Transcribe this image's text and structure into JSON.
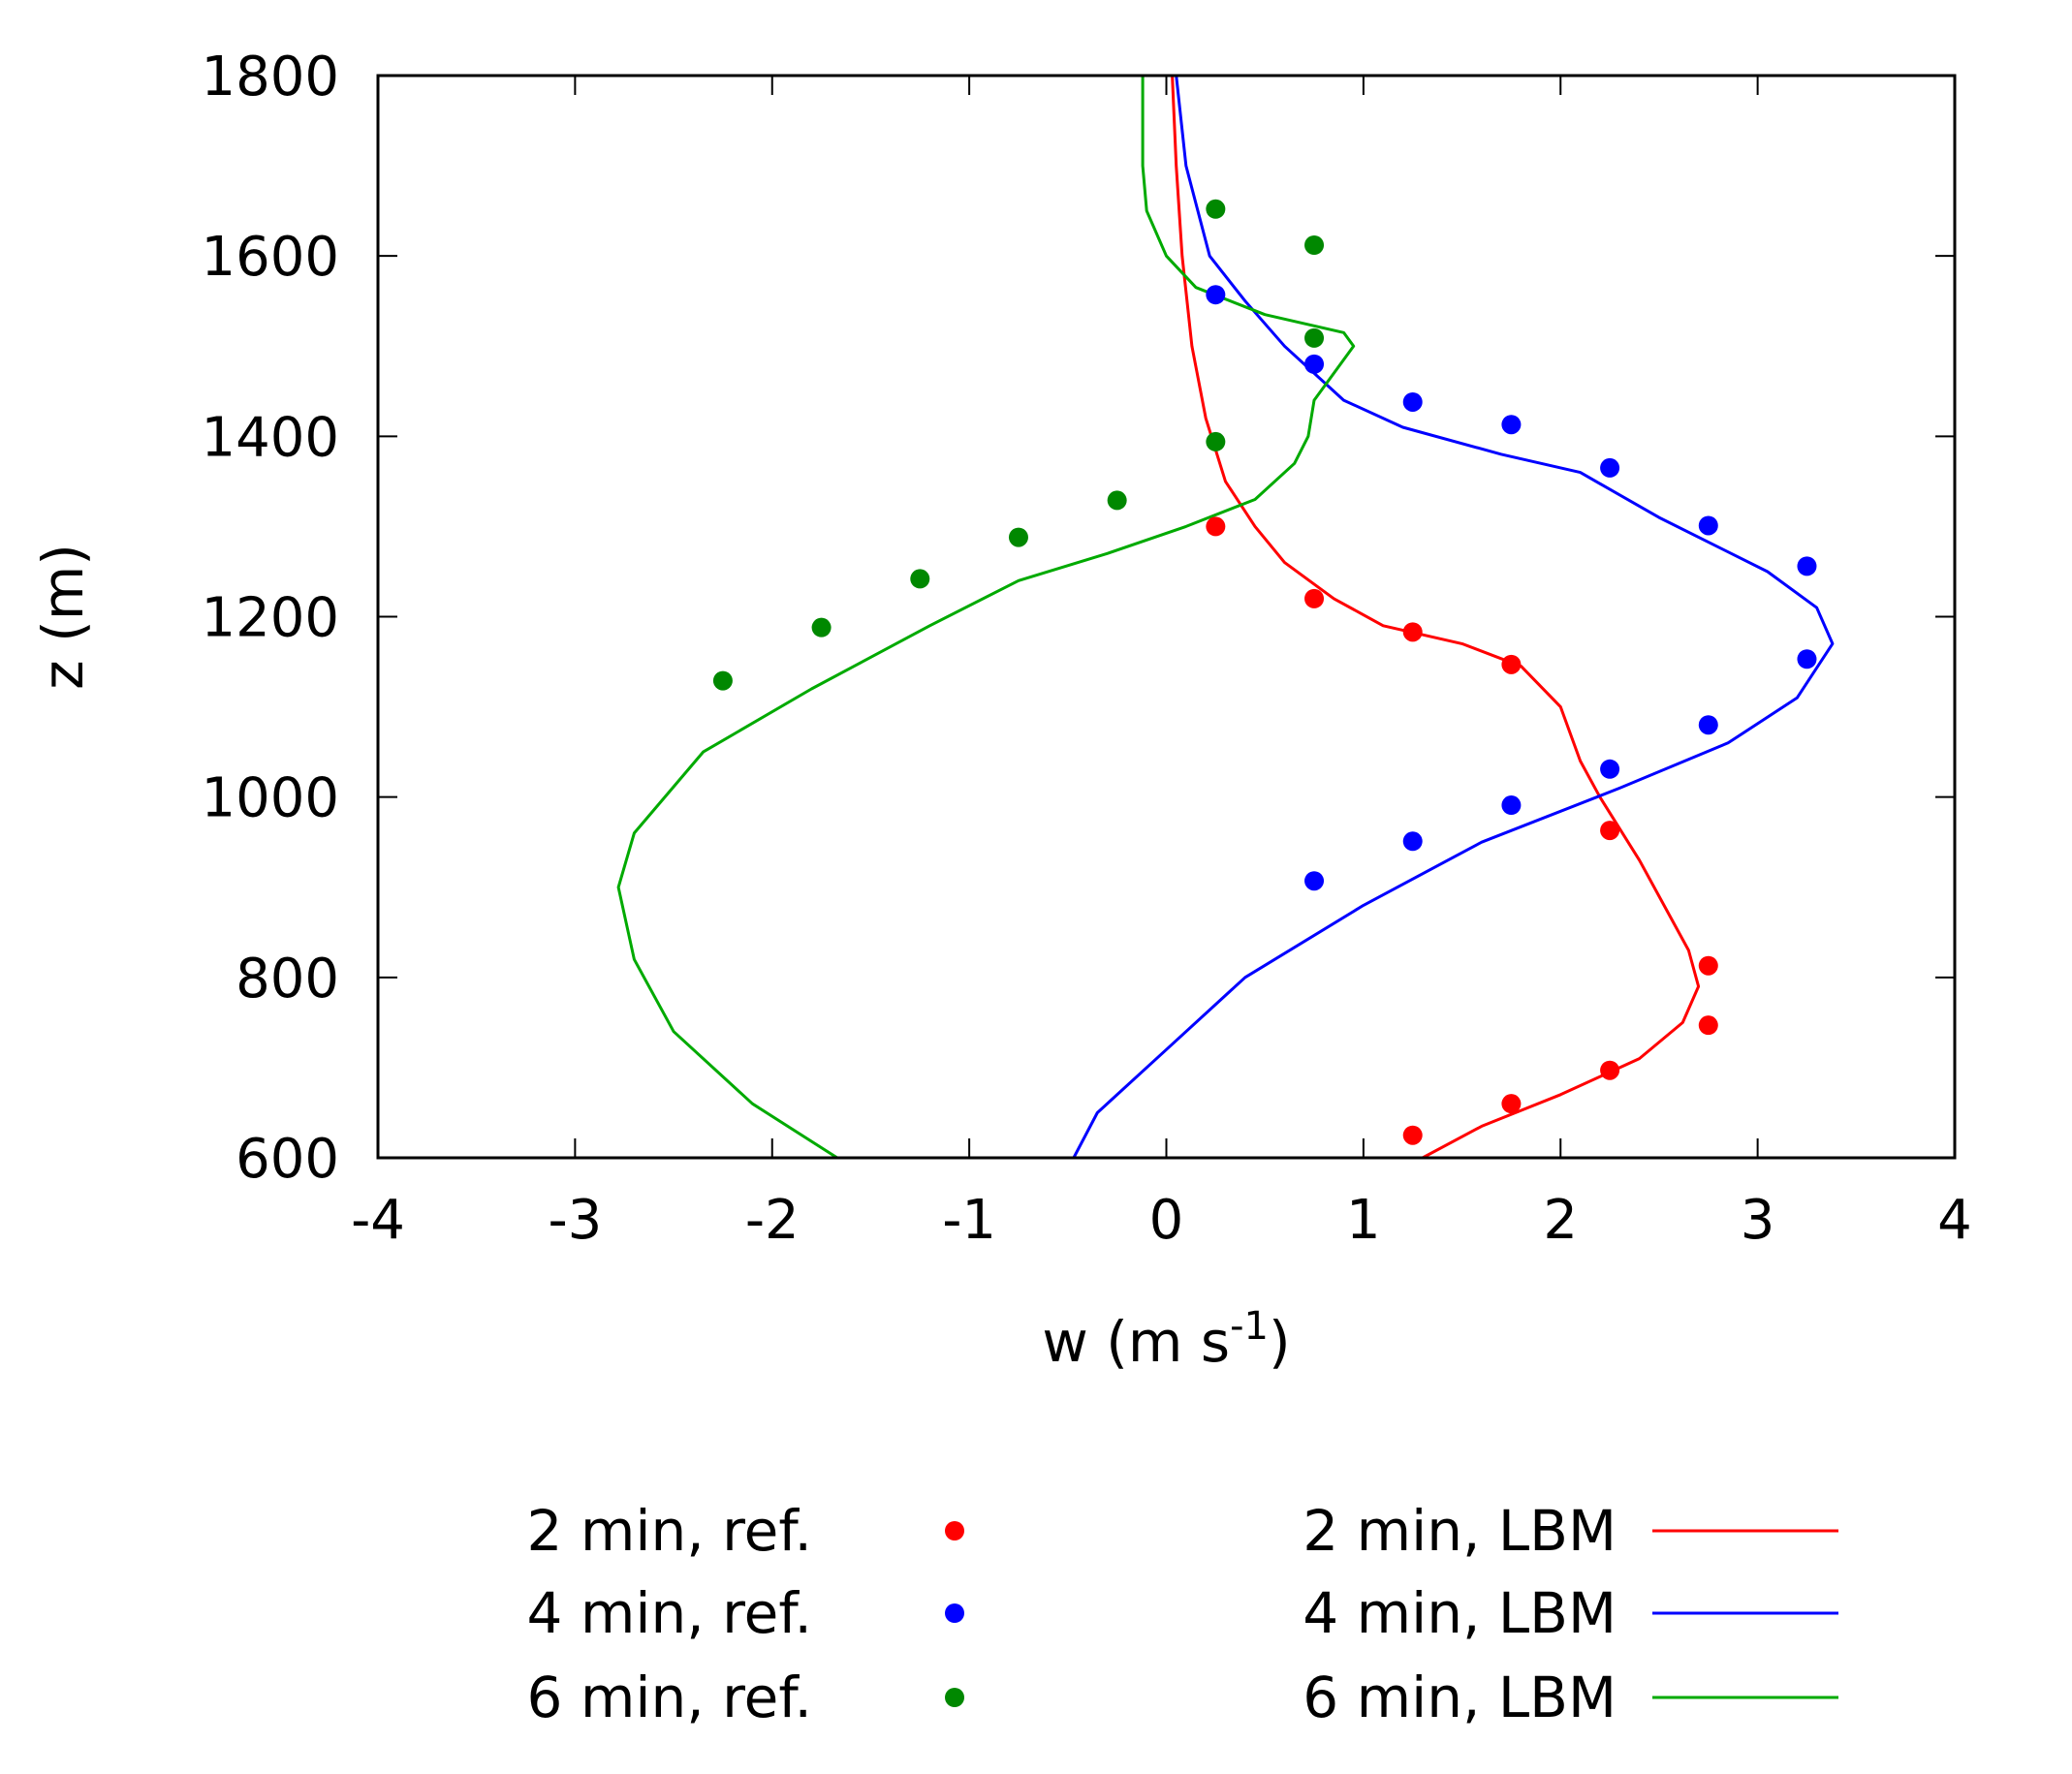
{
  "chart_data": {
    "type": "line",
    "title": "",
    "xlabel": {
      "base": "w (m s",
      "sup": "-1",
      "tail": ")"
    },
    "ylabel": "z (m)",
    "xlim": [
      -4,
      4
    ],
    "ylim": [
      600,
      1800
    ],
    "xticks": [
      -4,
      -3,
      -2,
      -1,
      0,
      1,
      2,
      3,
      4
    ],
    "yticks": [
      600,
      800,
      1000,
      1200,
      1400,
      1600,
      1800
    ],
    "xtick_labels": [
      "-4",
      "-3",
      "-2",
      "-1",
      "0",
      "1",
      "2",
      "3",
      "4"
    ],
    "ytick_labels": [
      "600",
      "800",
      "1000",
      "1200",
      "1400",
      "1600",
      "1800"
    ],
    "grid": false,
    "legend_position": "below",
    "series": [
      {
        "name": "2 min, ref.",
        "kind": "scatter",
        "color": "#ff0000",
        "points": [
          [
            1.25,
            625
          ],
          [
            1.75,
            660
          ],
          [
            2.25,
            697
          ],
          [
            2.75,
            747
          ],
          [
            2.75,
            813
          ],
          [
            2.25,
            963
          ],
          [
            1.75,
            1147
          ],
          [
            1.25,
            1183
          ],
          [
            0.75,
            1220
          ],
          [
            0.25,
            1300
          ]
        ]
      },
      {
        "name": "4 min, ref.",
        "kind": "scatter",
        "color": "#0000ff",
        "points": [
          [
            0.75,
            907
          ],
          [
            1.25,
            951
          ],
          [
            1.75,
            991
          ],
          [
            2.25,
            1031
          ],
          [
            2.75,
            1080
          ],
          [
            3.25,
            1153
          ],
          [
            3.25,
            1256
          ],
          [
            2.75,
            1301
          ],
          [
            2.25,
            1365
          ],
          [
            1.75,
            1413
          ],
          [
            1.25,
            1438
          ],
          [
            0.75,
            1480
          ],
          [
            0.25,
            1557
          ]
        ]
      },
      {
        "name": "6 min, ref.",
        "kind": "scatter",
        "color": "#008800",
        "points": [
          [
            -2.25,
            1129
          ],
          [
            -1.75,
            1188
          ],
          [
            -1.25,
            1242
          ],
          [
            -0.75,
            1288
          ],
          [
            -0.25,
            1329
          ],
          [
            0.25,
            1394
          ],
          [
            0.75,
            1509
          ],
          [
            0.75,
            1612
          ],
          [
            0.25,
            1652
          ]
        ]
      },
      {
        "name": "2 min, LBM",
        "kind": "line",
        "color": "#ff0000",
        "points": [
          [
            1.3,
            600
          ],
          [
            1.6,
            635
          ],
          [
            2.0,
            670
          ],
          [
            2.4,
            710
          ],
          [
            2.62,
            750
          ],
          [
            2.7,
            790
          ],
          [
            2.65,
            830
          ],
          [
            2.4,
            930
          ],
          [
            2.2,
            1000
          ],
          [
            2.1,
            1040
          ],
          [
            2.0,
            1100
          ],
          [
            1.8,
            1145
          ],
          [
            1.5,
            1170
          ],
          [
            1.1,
            1190
          ],
          [
            0.85,
            1220
          ],
          [
            0.6,
            1260
          ],
          [
            0.45,
            1300
          ],
          [
            0.3,
            1350
          ],
          [
            0.2,
            1420
          ],
          [
            0.13,
            1500
          ],
          [
            0.08,
            1600
          ],
          [
            0.05,
            1700
          ],
          [
            0.03,
            1800
          ]
        ]
      },
      {
        "name": "4 min, LBM",
        "kind": "line",
        "color": "#0000ff",
        "points": [
          [
            -0.47,
            600
          ],
          [
            -0.35,
            650
          ],
          [
            0.0,
            720
          ],
          [
            0.4,
            800
          ],
          [
            1.0,
            880
          ],
          [
            1.6,
            950
          ],
          [
            2.3,
            1010
          ],
          [
            2.85,
            1060
          ],
          [
            3.2,
            1110
          ],
          [
            3.38,
            1170
          ],
          [
            3.3,
            1210
          ],
          [
            3.05,
            1250
          ],
          [
            2.5,
            1310
          ],
          [
            2.1,
            1360
          ],
          [
            1.7,
            1380
          ],
          [
            1.2,
            1410
          ],
          [
            0.9,
            1440
          ],
          [
            0.6,
            1500
          ],
          [
            0.4,
            1550
          ],
          [
            0.22,
            1600
          ],
          [
            0.1,
            1700
          ],
          [
            0.05,
            1800
          ]
        ]
      },
      {
        "name": "6 min, LBM",
        "kind": "line",
        "color": "#00aa00",
        "points": [
          [
            -1.67,
            600
          ],
          [
            -2.1,
            660
          ],
          [
            -2.5,
            740
          ],
          [
            -2.7,
            820
          ],
          [
            -2.78,
            900
          ],
          [
            -2.7,
            960
          ],
          [
            -2.35,
            1050
          ],
          [
            -1.8,
            1120
          ],
          [
            -1.2,
            1190
          ],
          [
            -0.75,
            1240
          ],
          [
            -0.3,
            1270
          ],
          [
            0.1,
            1300
          ],
          [
            0.45,
            1330
          ],
          [
            0.65,
            1370
          ],
          [
            0.72,
            1400
          ],
          [
            0.75,
            1440
          ],
          [
            0.95,
            1500
          ],
          [
            0.9,
            1515
          ],
          [
            0.5,
            1535
          ],
          [
            0.15,
            1565
          ],
          [
            0.0,
            1600
          ],
          [
            -0.1,
            1650
          ],
          [
            -0.12,
            1700
          ],
          [
            -0.12,
            1800
          ]
        ]
      }
    ]
  }
}
